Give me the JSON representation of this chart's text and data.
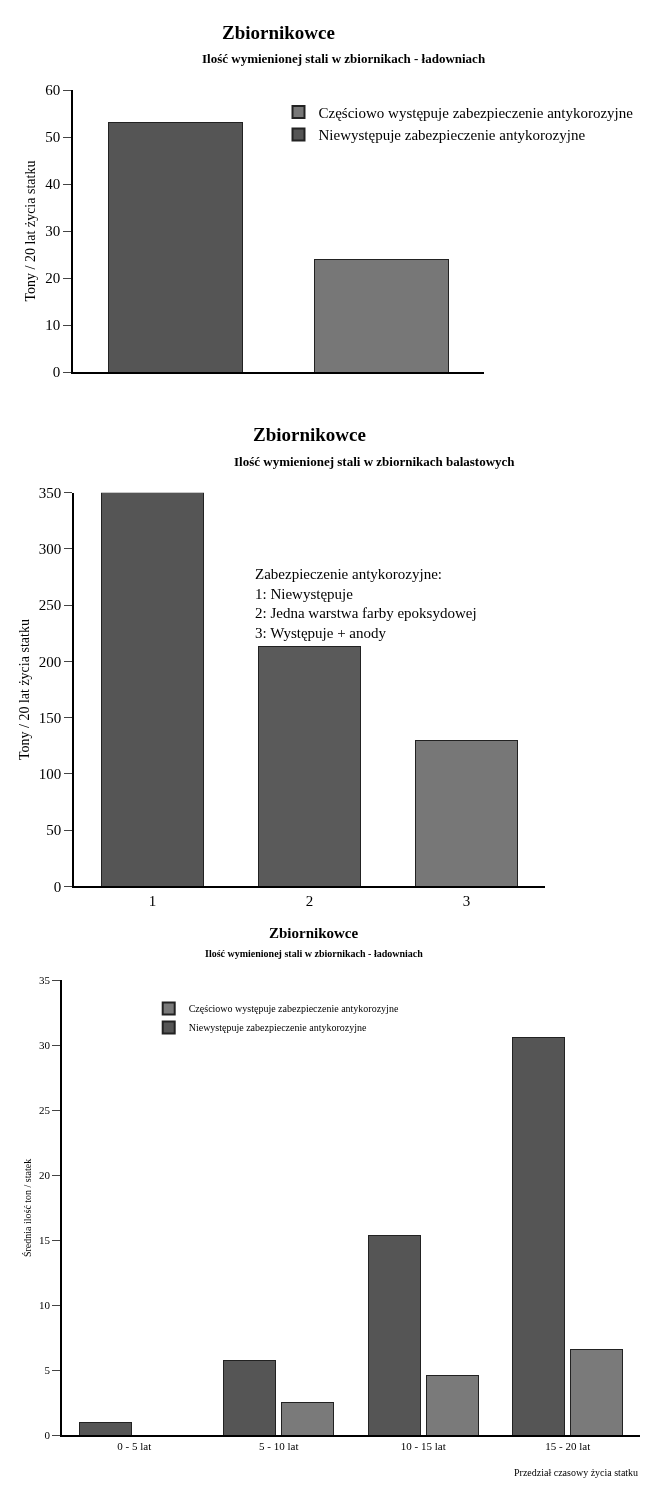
{
  "chart_data": [
    {
      "type": "bar",
      "title": "Zbiornikowce",
      "subtitle": "Ilość wymienionej stali w zbiornikach - ładowniach",
      "ylabel": "Tony / 20 lat życia statku",
      "categories": [
        null,
        null
      ],
      "stacked": true,
      "series": [
        {
          "name": "Niewystępuje zabezpieczenie antykorozyjne",
          "color": "#555555",
          "values": [
            53,
            null
          ]
        },
        {
          "name": "Częściowo występuje zabezpieczenie antykorozyjne",
          "color": "#777777",
          "values": [
            null,
            24
          ]
        }
      ],
      "ylim": [
        0,
        60
      ],
      "yticks": [
        0,
        10,
        20,
        30,
        40,
        50,
        60
      ],
      "tick_labels": "y",
      "legend": "top right",
      "grid": false
    },
    {
      "type": "bar",
      "title": "Zbiornikowce",
      "subtitle": "Ilość wymienionej stali w zbiornikach balastowych",
      "ylabel": "Tony / 20 lat życia statku",
      "categories": [
        "1",
        "2",
        "3"
      ],
      "values": [
        350,
        213,
        130
      ],
      "colors": [
        "#555555",
        "#5a5a5a",
        "#777777"
      ],
      "annotations": [
        "Zabezpieczenie antykorozyjne:\n1: Niewystępuje\n2: Jedna warstwa farby epoksydowej\n3: Występuje + anody"
      ],
      "ylim": [
        0,
        350
      ],
      "yticks": [
        0,
        50,
        100,
        150,
        200,
        250,
        300,
        350
      ],
      "legend": false,
      "grid": false
    },
    {
      "type": "bar",
      "title": "Zbiornikowce",
      "subtitle": "Ilość wymienionej stali w zbiornikach - ładowniach",
      "ylabel": "Średnia ilość ton / statek",
      "xlabel": "Przedział czasowy życia statku",
      "categories": [
        "0 - 5 lat",
        "5 - 10 lat",
        "10 - 15 lat",
        "15 - 20 lat"
      ],
      "series": [
        {
          "name": "Niewystępuje zabezpieczenie antykorozyjne",
          "color": "#555555",
          "values": [
            1.0,
            5.8,
            15.4,
            30.6
          ]
        },
        {
          "name": "Częściowo występuje zabezpieczenie antykorozyjne",
          "color": "#7a7a7a",
          "values": [
            null,
            2.5,
            4.6,
            6.6
          ]
        }
      ],
      "ylim": [
        0,
        35
      ],
      "yticks": [
        0,
        5,
        10,
        15,
        20,
        25,
        30,
        35
      ],
      "legend": "top left",
      "grid": false
    }
  ]
}
